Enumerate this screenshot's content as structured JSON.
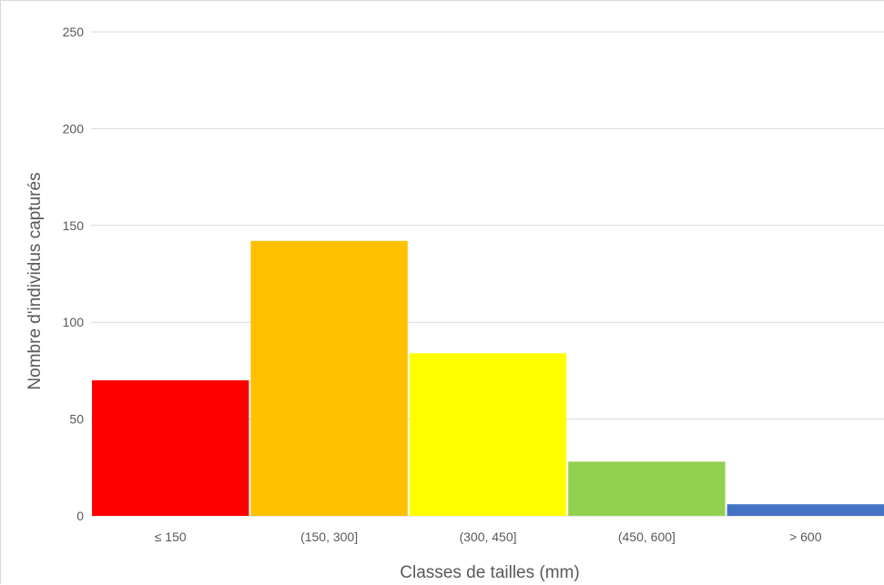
{
  "chart_data": {
    "type": "bar",
    "title": "",
    "xlabel": "Classes de tailles (mm)",
    "ylabel": "Nombre d'individus capturés",
    "ylim": [
      0,
      250
    ],
    "yticks": [
      0,
      50,
      100,
      150,
      200,
      250
    ],
    "grid": true,
    "legend": "none",
    "categories": [
      "≤ 150",
      "(150, 300]",
      "(300, 450]",
      "(450, 600]",
      "> 600"
    ],
    "values": [
      70,
      142,
      84,
      28,
      6
    ],
    "colors": [
      "#ff0000",
      "#ffc000",
      "#ffff00",
      "#92d050",
      "#4472c4"
    ]
  }
}
